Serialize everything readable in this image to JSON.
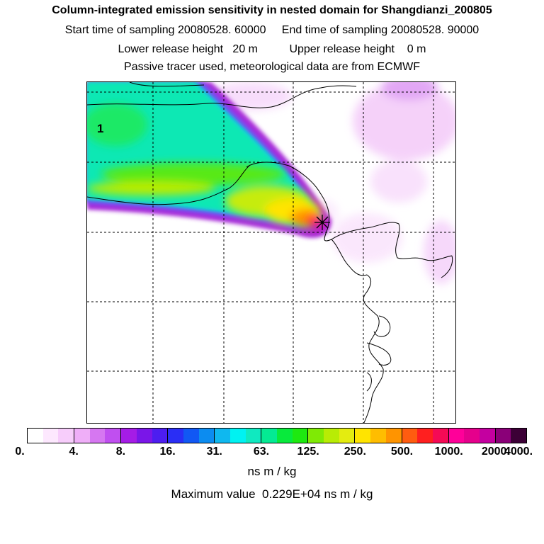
{
  "header": {
    "title": "Column-integrated emission sensitivity in nested domain for Shangdianzi_200805",
    "line2": "Start time of sampling 20080528. 60000     End time of sampling 20080528. 90000",
    "line3": "Lower release height   20 m          Upper release height    0 m",
    "line4": "Passive tracer used, meteorological data are from ECMWF"
  },
  "map": {
    "region_label": "1",
    "receptor_marker": "star-marker",
    "grid_style": "dashed"
  },
  "colorbar": {
    "colors": [
      "#ffffff",
      "#fde8fe",
      "#f7cdfb",
      "#efaef8",
      "#d677f1",
      "#c04ff0",
      "#a51ce6",
      "#7a16e8",
      "#4d1df0",
      "#2a2ef5",
      "#1158f4",
      "#0c8cf0",
      "#0fb8ef",
      "#00f2f2",
      "#10e9c0",
      "#04ea93",
      "#08ea3c",
      "#1ee910",
      "#7fea05",
      "#b8ec05",
      "#e4ec10",
      "#ffe400",
      "#ffbd00",
      "#ff9400",
      "#ff5c10",
      "#ff1f1f",
      "#f50a55",
      "#ff0099",
      "#e5008c",
      "#c400a0",
      "#8a0078",
      "#3c0036"
    ],
    "labels": [
      "0.",
      "4.",
      "8.",
      "16.",
      "31.",
      "63.",
      "125.",
      "250.",
      "500.",
      "1000.",
      "2000.",
      "4000."
    ],
    "units": "ns m / kg",
    "max_text": "Maximum value  0.229E+04 ns m / kg"
  }
}
